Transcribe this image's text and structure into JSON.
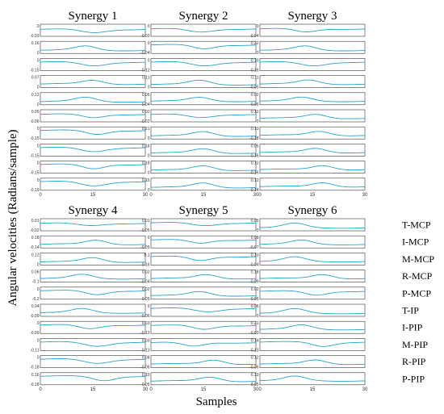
{
  "figure": {
    "ylabel": "Angular velocities (Radians/sample)",
    "xlabel": "Samples",
    "x_ticks": [
      "0",
      "15",
      "30"
    ],
    "curve_color": "#29a3cf",
    "joints": [
      "T-MCP",
      "I-MCP",
      "M-MCP",
      "R-MCP",
      "P-MCP",
      "T-IP",
      "I-PIP",
      "M-PIP",
      "R-PIP",
      "P-PIP"
    ]
  },
  "chart_data": {
    "type": "line",
    "x": [
      0,
      30
    ],
    "xlim": [
      0,
      30
    ],
    "synergies": [
      {
        "title": "Synergy 1",
        "yticks": [
          [
            "0",
            "-0.03"
          ],
          [
            "0.16",
            "0"
          ],
          [
            "0",
            "-0.15"
          ],
          [
            "0.07",
            "0"
          ],
          [
            "0.12",
            "0"
          ],
          [
            "0.05",
            "-0.06"
          ],
          [
            "0",
            "-0.15"
          ],
          [
            "0",
            "-0.15"
          ],
          [
            "0",
            "-0.15"
          ],
          [
            "0",
            "-0.19"
          ]
        ],
        "peaks": [
          {
            "c": 15,
            "w": 6,
            "a": -0.7,
            "b": 0.2
          },
          {
            "c": 13,
            "w": 5,
            "a": 0.85,
            "b": -0.6
          },
          {
            "c": 15,
            "w": 6,
            "a": -0.8,
            "b": 0.5
          },
          {
            "c": 15,
            "w": 5,
            "a": 0.75,
            "b": -0.5
          },
          {
            "c": 13,
            "w": 5,
            "a": 0.85,
            "b": -0.6
          },
          {
            "c": 15,
            "w": 5,
            "a": -0.7,
            "b": 0.3
          },
          {
            "c": 16,
            "w": 5,
            "a": -0.8,
            "b": 0.5
          },
          {
            "c": 15,
            "w": 6,
            "a": -0.85,
            "b": 0.5
          },
          {
            "c": 15,
            "w": 5,
            "a": -0.9,
            "b": 0.55
          },
          {
            "c": 15,
            "w": 6,
            "a": -0.9,
            "b": 0.55
          }
        ]
      },
      {
        "title": "Synergy 2",
        "yticks": [
          [
            "0",
            "-0.03"
          ],
          [
            "0",
            "-0.04"
          ],
          [
            "0",
            "-0.12"
          ],
          [
            "0.11",
            "0"
          ],
          [
            "0.05",
            "-0.04"
          ],
          [
            "0.02",
            "-0.02"
          ],
          [
            "0.21",
            "0"
          ],
          [
            "0.18",
            "0"
          ],
          [
            "0.18",
            "0"
          ],
          [
            "0.15",
            "0"
          ]
        ],
        "peaks": [
          {
            "c": 14,
            "w": 6,
            "a": -0.7,
            "b": 0.3
          },
          {
            "c": 15,
            "w": 5,
            "a": -0.8,
            "b": 0.5
          },
          {
            "c": 15,
            "w": 6,
            "a": -0.8,
            "b": 0.5
          },
          {
            "c": 14,
            "w": 5,
            "a": 0.85,
            "b": -0.6
          },
          {
            "c": 14,
            "w": 5,
            "a": 0.75,
            "b": -0.5
          },
          {
            "c": 14,
            "w": 6,
            "a": -0.7,
            "b": 0.3
          },
          {
            "c": 15,
            "w": 5,
            "a": 0.85,
            "b": -0.6
          },
          {
            "c": 15,
            "w": 5,
            "a": 0.85,
            "b": -0.6
          },
          {
            "c": 15,
            "w": 5,
            "a": 0.85,
            "b": -0.6
          },
          {
            "c": 15,
            "w": 5,
            "a": 0.9,
            "b": -0.65
          }
        ]
      },
      {
        "title": "Synergy 3",
        "yticks": [
          [
            "0",
            "-0.04"
          ],
          [
            "0.22",
            "0"
          ],
          [
            "0.10",
            "-0.16"
          ],
          [
            "0.11",
            "-0.05"
          ],
          [
            "0.02",
            "-0.06"
          ],
          [
            "0.12",
            "0"
          ],
          [
            "0.13",
            "-0.18"
          ],
          [
            "0.05",
            "-0.16"
          ],
          [
            "0.12",
            "-0.16"
          ],
          [
            "0.12",
            "-0.14"
          ]
        ],
        "peaks": [
          {
            "c": 13,
            "w": 5,
            "a": -0.7,
            "b": 0.3
          },
          {
            "c": 13,
            "w": 5,
            "a": 0.85,
            "b": -0.6
          },
          {
            "c": 15,
            "w": 6,
            "a": -0.8,
            "b": 0.5
          },
          {
            "c": 14,
            "w": 5,
            "a": 0.8,
            "b": -0.5
          },
          {
            "c": 12,
            "w": 5,
            "a": 0.75,
            "b": -0.5
          },
          {
            "c": 16,
            "w": 5,
            "a": 0.8,
            "b": -0.5
          },
          {
            "c": 17,
            "w": 5,
            "a": 0.85,
            "b": -0.5
          },
          {
            "c": 16,
            "w": 5,
            "a": 0.85,
            "b": -0.5
          },
          {
            "c": 18,
            "w": 5,
            "a": 0.85,
            "b": -0.5
          },
          {
            "c": 18,
            "w": 5,
            "a": 0.85,
            "b": -0.5
          }
        ]
      },
      {
        "title": "Synergy 4",
        "yticks": [
          [
            "0.01",
            "-0.02"
          ],
          [
            "0.18",
            "-0.14"
          ],
          [
            "0.12",
            "0"
          ],
          [
            "0.06",
            "-0.1"
          ],
          [
            "0",
            "-0.2"
          ],
          [
            "0.04",
            "-0.09"
          ],
          [
            "0",
            "-0.09"
          ],
          [
            "0",
            "-0.11"
          ],
          [
            "0",
            "-0.18"
          ],
          [
            "0.16",
            "-0.18"
          ]
        ],
        "peaks": [
          {
            "c": 14,
            "w": 6,
            "a": -0.5,
            "b": 0.3
          },
          {
            "c": 16,
            "w": 5,
            "a": 0.85,
            "b": -0.5
          },
          {
            "c": 15,
            "w": 5,
            "a": 0.85,
            "b": -0.6
          },
          {
            "c": 12,
            "w": 5,
            "a": 0.8,
            "b": -0.5
          },
          {
            "c": 16,
            "w": 5,
            "a": -0.8,
            "b": 0.5
          },
          {
            "c": 12,
            "w": 5,
            "a": 0.8,
            "b": -0.5
          },
          {
            "c": 14,
            "w": 5,
            "a": -0.8,
            "b": 0.5
          },
          {
            "c": 16,
            "w": 6,
            "a": -0.85,
            "b": 0.5
          },
          {
            "c": 16,
            "w": 6,
            "a": -0.85,
            "b": 0.5
          },
          {
            "c": 18,
            "w": 5,
            "a": -0.85,
            "b": 0.5
          }
        ]
      },
      {
        "title": "Synergy 5",
        "yticks": [
          [
            "0.01",
            "-0.05"
          ],
          [
            "0",
            "-0.05"
          ],
          [
            "0.1",
            "-0.16"
          ],
          [
            "0.02",
            "-0.04"
          ],
          [
            "0.02",
            "-0.05"
          ],
          [
            "0",
            "-0.06"
          ],
          [
            "0.03",
            "-0.13"
          ],
          [
            "0.03",
            "-0.13"
          ],
          [
            "0.08",
            "-0.06"
          ],
          [
            "0.10",
            "-0.05"
          ]
        ],
        "peaks": [
          {
            "c": 15,
            "w": 6,
            "a": -0.6,
            "b": 0.4
          },
          {
            "c": 14,
            "w": 5,
            "a": -0.7,
            "b": 0.4
          },
          {
            "c": 14,
            "w": 5,
            "a": -0.85,
            "b": 0.5
          },
          {
            "c": 16,
            "w": 5,
            "a": 0.8,
            "b": -0.5
          },
          {
            "c": 14,
            "w": 5,
            "a": 0.8,
            "b": -0.5
          },
          {
            "c": 16,
            "w": 6,
            "a": -0.7,
            "b": 0.4
          },
          {
            "c": 15,
            "w": 5,
            "a": -0.8,
            "b": 0.4
          },
          {
            "c": 12,
            "w": 5,
            "a": -0.8,
            "b": 0.4
          },
          {
            "c": 18,
            "w": 5,
            "a": 0.85,
            "b": -0.5
          },
          {
            "c": 17,
            "w": 5,
            "a": 0.85,
            "b": -0.5
          }
        ]
      },
      {
        "title": "Synergy 6",
        "yticks": [
          [
            "0.05",
            "0"
          ],
          [
            "0.08",
            "-0.07"
          ],
          [
            "0.13",
            "-0.04"
          ],
          [
            "0.18",
            "-0.09"
          ],
          [
            "0.02",
            "-0.06"
          ],
          [
            "0.06",
            "0"
          ],
          [
            "0.21",
            "-0.03"
          ],
          [
            "0.14",
            "-0.13"
          ],
          [
            "0.12",
            "-0.06"
          ],
          [
            "0.13",
            "-0.05"
          ]
        ],
        "peaks": [
          {
            "c": 10,
            "w": 5,
            "a": 0.85,
            "b": -0.6
          },
          {
            "c": 12,
            "w": 5,
            "a": 0.8,
            "b": -0.5
          },
          {
            "c": 10,
            "w": 5,
            "a": 0.85,
            "b": -0.5
          },
          {
            "c": 18,
            "w": 5,
            "a": 0.85,
            "b": -0.5
          },
          {
            "c": 16,
            "w": 5,
            "a": -0.8,
            "b": 0.4
          },
          {
            "c": 10,
            "w": 5,
            "a": 0.85,
            "b": -0.6
          },
          {
            "c": 12,
            "w": 5,
            "a": 0.85,
            "b": -0.4
          },
          {
            "c": 18,
            "w": 5,
            "a": -0.85,
            "b": 0.5
          },
          {
            "c": 16,
            "w": 5,
            "a": 0.85,
            "b": -0.5
          },
          {
            "c": 10,
            "w": 5,
            "a": 0.85,
            "b": -0.4
          }
        ]
      }
    ]
  }
}
